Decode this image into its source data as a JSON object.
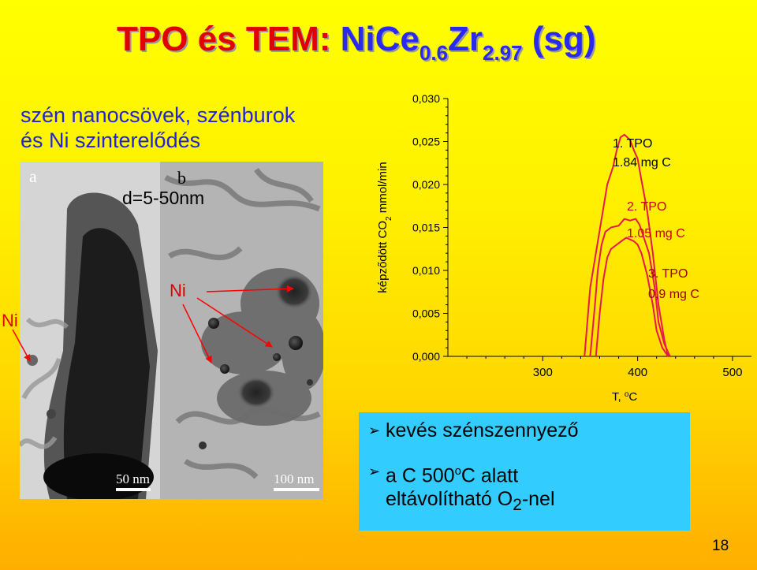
{
  "title": {
    "part1": "TPO és TEM:",
    "part2": "NiCe",
    "sub1": "0.6",
    "part3": "Zr",
    "sub2": "2.97",
    "part4": "(sg)"
  },
  "subtitle": {
    "line1": "szén nanocsövek, szénburok",
    "line2": "és Ni szinterelődés"
  },
  "tem": {
    "label_a": "a",
    "label_b": "b",
    "size_text": "d=5-50nm",
    "ni_label_outer": "Ni",
    "ni_label_inner": "Ni",
    "scale_a": "50 nm",
    "scale_b": "100 nm"
  },
  "chart_data": {
    "type": "line",
    "ylabel_text": "képződött CO",
    "ylabel_sub": "2",
    "ylabel_unit": "mmol/min",
    "xlabel_text": "T,",
    "xlabel_sup": "o",
    "xlabel_unit": "C",
    "xlim": [
      200,
      520
    ],
    "ylim": [
      0.0,
      0.03
    ],
    "x_ticks": [
      300,
      400,
      500
    ],
    "y_ticks": [
      0.0,
      0.005,
      0.01,
      0.015,
      0.02,
      0.025,
      0.03
    ],
    "y_tick_labels": [
      "0,000",
      "0,005",
      "0,010",
      "0,015",
      "0,020",
      "0,025",
      "0,030"
    ],
    "series_color": "#e8184c",
    "series": [
      {
        "name": "1. TPO 1.84 mg C",
        "label_line1": "1. TPO",
        "label_line2": "1.84 mg C",
        "label_color": "#000000",
        "x": [
          344,
          350,
          356,
          362,
          368,
          374,
          378,
          382,
          386,
          392,
          396,
          400,
          404,
          410,
          416,
          422,
          428,
          432
        ],
        "y": [
          0.0,
          0.008,
          0.012,
          0.016,
          0.02,
          0.022,
          0.024,
          0.0255,
          0.0258,
          0.0252,
          0.024,
          0.023,
          0.0205,
          0.017,
          0.012,
          0.006,
          0.002,
          0.0
        ]
      },
      {
        "name": "2. TPO 1.05 mg C",
        "label_line1": "2. TPO",
        "label_line2": "1.05 mg C",
        "label_color": "#cc0000",
        "x": [
          350,
          355,
          358,
          362,
          366,
          372,
          380,
          386,
          392,
          398,
          402,
          406,
          412,
          418,
          422,
          428,
          434
        ],
        "y": [
          0.0,
          0.006,
          0.01,
          0.013,
          0.0145,
          0.015,
          0.0152,
          0.016,
          0.0158,
          0.016,
          0.0153,
          0.014,
          0.012,
          0.008,
          0.004,
          0.0015,
          0.0
        ]
      },
      {
        "name": "3. TPO 0,9 mg C",
        "label_line1": "3. TPO",
        "label_line2": "0,9 mg C",
        "label_color": "#990000",
        "x": [
          356,
          360,
          364,
          368,
          372,
          378,
          384,
          388,
          392,
          396,
          400,
          404,
          410,
          416,
          420,
          426,
          432
        ],
        "y": [
          0.0,
          0.005,
          0.009,
          0.0115,
          0.0125,
          0.013,
          0.0135,
          0.0138,
          0.0136,
          0.0134,
          0.013,
          0.012,
          0.0095,
          0.006,
          0.003,
          0.001,
          0.0
        ]
      }
    ]
  },
  "bullets": {
    "item1": "kevés szénszennyező",
    "item2_pre": "a C 500",
    "item2_sup": "o",
    "item2_post": "C alatt",
    "item2_line2_pre": "eltávolítható O",
    "item2_line2_sub": "2",
    "item2_line2_post": "-nel"
  },
  "page_number": "18",
  "colors": {
    "title_red": "#e00000",
    "title_blue": "#2a2aee",
    "subtitle_blue": "#2222dd",
    "box_blue": "#33ccff",
    "arrow_red": "#ff0000"
  }
}
